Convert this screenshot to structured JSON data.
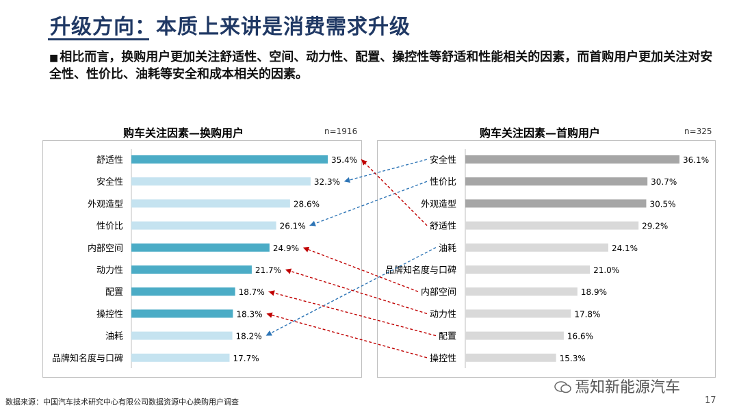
{
  "header": {
    "title": "升级方向：本质上来讲是消费需求升级",
    "bullet_marker": "■",
    "bullet": "相比而言，换购用户更加关注舒适性、空间、动力性、配置、操控性等舒适和性能相关的因素，而首购用户更加关注对安全性、性价比、油耗等安全和成本相关的因素。"
  },
  "footer": {
    "source": "数据来源：中国汽车技术研究中心有限公司数据资源中心换购用户调查",
    "watermark": "焉知新能源汽车",
    "page": "17"
  },
  "chart_data": [
    {
      "type": "bar",
      "orientation": "horizontal",
      "title": "购车关注因素—换购用户",
      "sample": "n=1916",
      "categories": [
        "舒适性",
        "安全性",
        "外观造型",
        "性价比",
        "内部空间",
        "动力性",
        "配置",
        "操控性",
        "油耗",
        "品牌知名度与口碑"
      ],
      "values": [
        35.4,
        32.3,
        28.6,
        26.1,
        24.9,
        21.7,
        18.7,
        18.3,
        18.2,
        17.7
      ],
      "labels": [
        "35.4%",
        "32.3%",
        "28.6%",
        "26.1%",
        "24.9%",
        "21.7%",
        "18.7%",
        "18.3%",
        "18.2%",
        "17.7%"
      ],
      "bar_colors": [
        "#4bacc6",
        "#c5e3f0",
        "#c5e3f0",
        "#c5e3f0",
        "#4bacc6",
        "#4bacc6",
        "#4bacc6",
        "#4bacc6",
        "#c5e3f0",
        "#c5e3f0"
      ]
    },
    {
      "type": "bar",
      "orientation": "horizontal",
      "title": "购车关注因素—首购用户",
      "sample": "n=325",
      "categories": [
        "安全性",
        "性价比",
        "外观造型",
        "舒适性",
        "油耗",
        "品牌知名度与口碑",
        "内部空间",
        "动力性",
        "配置",
        "操控性"
      ],
      "values": [
        36.1,
        30.7,
        30.5,
        29.2,
        24.1,
        21.0,
        18.9,
        17.8,
        16.6,
        15.3
      ],
      "labels": [
        "36.1%",
        "30.7%",
        "30.5%",
        "29.2%",
        "24.1%",
        "21.0%",
        "18.9%",
        "17.8%",
        "16.6%",
        "15.3%"
      ],
      "bar_colors": [
        "#a6a6a6",
        "#a6a6a6",
        "#a6a6a6",
        "#d9d9d9",
        "#d9d9d9",
        "#d9d9d9",
        "#d9d9d9",
        "#d9d9d9",
        "#d9d9d9",
        "#d9d9d9"
      ]
    }
  ],
  "connectors": [
    {
      "from_right": "安全性",
      "to_left": "安全性",
      "color": "#2e75b6"
    },
    {
      "from_right": "性价比",
      "to_left": "性价比",
      "color": "#2e75b6"
    },
    {
      "from_right": "油耗",
      "to_left": "油耗",
      "color": "#2e75b6"
    },
    {
      "from_right": "舒适性",
      "to_left": "舒适性",
      "color": "#c00000"
    },
    {
      "from_right": "内部空间",
      "to_left": "内部空间",
      "color": "#c00000"
    },
    {
      "from_right": "动力性",
      "to_left": "动力性",
      "color": "#c00000"
    },
    {
      "from_right": "配置",
      "to_left": "配置",
      "color": "#c00000"
    },
    {
      "from_right": "操控性",
      "to_left": "操控性",
      "color": "#c00000"
    }
  ]
}
